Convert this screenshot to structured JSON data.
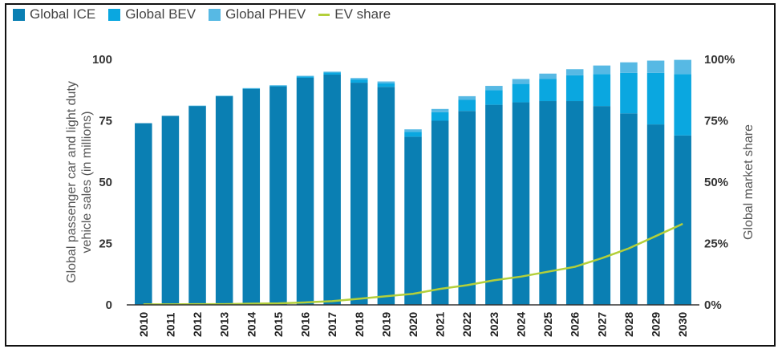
{
  "legend": {
    "ice": "Global ICE",
    "bev": "Global BEV",
    "phev": "Global PHEV",
    "ev_share": "EV share"
  },
  "colors": {
    "ice": "#0a7fb3",
    "bev": "#0aa7e0",
    "phev": "#57b9e4",
    "ev_share": "#b3cf3a"
  },
  "chart_data": {
    "type": "bar",
    "stacked": true,
    "categories": [
      "2010",
      "2011",
      "2012",
      "2013",
      "2014",
      "2015",
      "2016",
      "2017",
      "2018",
      "2019",
      "2020",
      "2021",
      "2022",
      "2023",
      "2024",
      "2025",
      "2026",
      "2027",
      "2028",
      "2029",
      "2030"
    ],
    "series": [
      {
        "name": "Global ICE",
        "key": "ice",
        "values": [
          74,
          77,
          81,
          85,
          88,
          89,
          92.5,
          93.8,
          90.5,
          88.8,
          68.5,
          75,
          79,
          81.5,
          82.5,
          83,
          83,
          81,
          78,
          73.5,
          69
        ]
      },
      {
        "name": "Global BEV",
        "key": "bev",
        "values": [
          0,
          0,
          0.1,
          0.1,
          0.2,
          0.3,
          0.5,
          0.8,
          1.3,
          1.5,
          2,
          3.5,
          4.5,
          6,
          7.5,
          9,
          10.5,
          13,
          16.5,
          21,
          25
        ]
      },
      {
        "name": "Global PHEV",
        "key": "phev",
        "values": [
          0,
          0,
          0.1,
          0.1,
          0.1,
          0.2,
          0.3,
          0.4,
          0.6,
          0.7,
          1,
          1.3,
          1.5,
          1.7,
          2,
          2.2,
          2.5,
          3.5,
          4.3,
          5,
          5.8
        ]
      }
    ],
    "line_series": {
      "name": "EV share",
      "key": "ev_share",
      "values": [
        0.2,
        0.2,
        0.3,
        0.3,
        0.5,
        0.6,
        1,
        1.5,
        2.5,
        3.5,
        4.5,
        6.5,
        8,
        10,
        11.5,
        13.5,
        15.5,
        19,
        23,
        28,
        33
      ]
    },
    "ylabel": "Global passenger car and light duty vehicle sales (in millions)",
    "ylabel_lines": [
      "Global passenger car and light duty",
      "vehicle sales (in millions)"
    ],
    "y2label": "Global market share",
    "ylim": [
      0,
      100
    ],
    "y_ticks": [
      0,
      25,
      50,
      75,
      100
    ],
    "y2_ticks": [
      "0%",
      "25%",
      "50%",
      "75%",
      "100%"
    ],
    "grid": false,
    "legend_position": "top-left"
  }
}
